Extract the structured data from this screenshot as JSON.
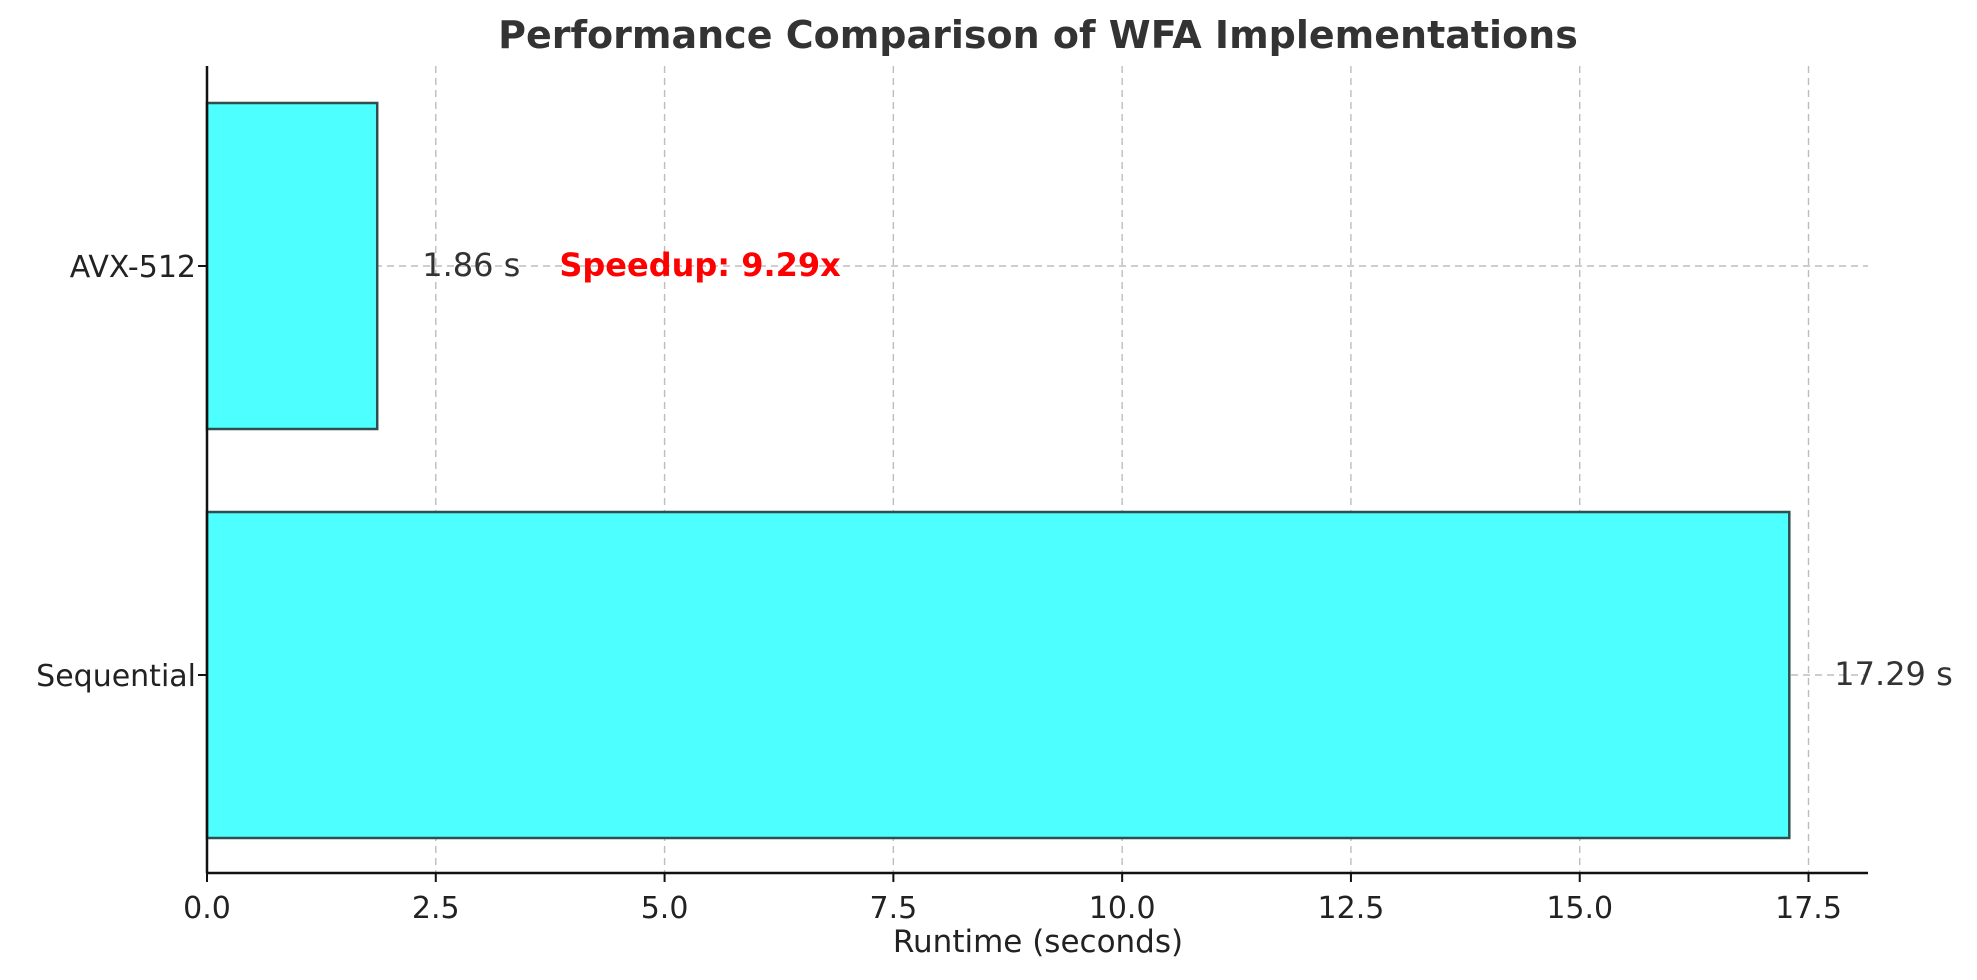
{
  "chart_data": {
    "type": "bar",
    "orientation": "horizontal",
    "title": "Performance Comparison of WFA Implementations",
    "xlabel": "Runtime (seconds)",
    "ylabel": "",
    "categories": [
      "Sequential",
      "AVX-512"
    ],
    "values": [
      17.29,
      1.86
    ],
    "value_labels": [
      "17.29 s",
      "1.86 s"
    ],
    "xlim": [
      0,
      18.15
    ],
    "xticks": [
      0.0,
      2.5,
      5.0,
      7.5,
      10.0,
      12.5,
      15.0,
      17.5
    ],
    "xtick_labels": [
      "0.0",
      "2.5",
      "5.0",
      "7.5",
      "10.0",
      "12.5",
      "15.0",
      "17.5"
    ],
    "grid": true,
    "legend": "none",
    "bar_color": "#4dffff",
    "bar_edge_color": "#2f4f4f",
    "annotation": {
      "text": "Speedup: 9.29x",
      "color": "#ff0000",
      "anchor_category": "AVX-512",
      "x": 3.85
    }
  }
}
